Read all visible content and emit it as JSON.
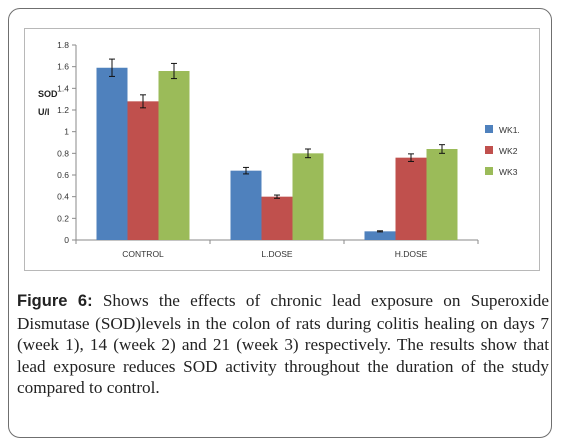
{
  "chart_data": {
    "type": "bar",
    "categories": [
      "CONTROL",
      "L.DOSE",
      "H.DOSE"
    ],
    "series": [
      {
        "name": "WK1.",
        "values": [
          1.59,
          0.64,
          0.08
        ],
        "errors": [
          0.08,
          0.03,
          0.005
        ],
        "color": "#4f81bd"
      },
      {
        "name": "WK2",
        "values": [
          1.28,
          0.4,
          0.76
        ],
        "errors": [
          0.06,
          0.015,
          0.035
        ],
        "color": "#c0504d"
      },
      {
        "name": "WK3",
        "values": [
          1.56,
          0.8,
          0.84
        ],
        "errors": [
          0.07,
          0.04,
          0.04
        ],
        "color": "#9bbb59"
      }
    ],
    "ylabel_lines": [
      "SOD",
      "U/l"
    ],
    "ylim": [
      0,
      1.8
    ],
    "yticks": [
      "0",
      "0.2",
      "0.4",
      "0.6",
      "0.8",
      "1",
      "1.2",
      "1.4",
      "1.6",
      "1.8"
    ],
    "ytick_values": [
      0,
      0.2,
      0.4,
      0.6,
      0.8,
      1.0,
      1.2,
      1.4,
      1.6,
      1.8
    ],
    "grid": false,
    "legend_position": "right"
  },
  "caption": {
    "label": "Figure 6:",
    "text": " Shows the effects of chronic lead exposure on Superoxide Dismutase (SOD)levels in the colon of rats during colitis healing on days 7 (week 1), 14 (week 2) and 21 (week 3) respectively. The results show that lead exposure reduces SOD activity throughout the duration of the study compared to control."
  }
}
